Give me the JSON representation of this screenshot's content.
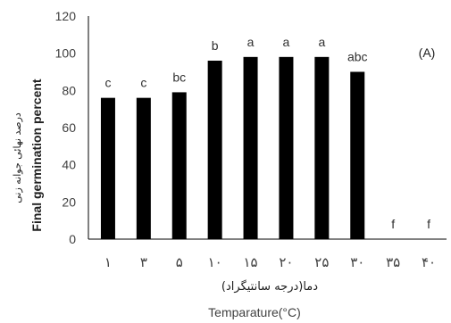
{
  "chart_data": {
    "type": "bar",
    "panel_label": "(A)",
    "categories": [
      "۱",
      "۳",
      "۵",
      "۱۰",
      "۱۵",
      "۲۰",
      "۲۵",
      "۳۰",
      "۳۵",
      "۴۰"
    ],
    "values": [
      76,
      76,
      79,
      96,
      98,
      98,
      98,
      90,
      0,
      0
    ],
    "significance": [
      "c",
      "c",
      "bc",
      "b",
      "a",
      "a",
      "a",
      "abc",
      "f",
      "f"
    ],
    "ylabel_fa": "درصد نهائی جوانه زنی",
    "ylabel_en": "Final germination percent",
    "xlabel_fa": "دما(درجه سانتیگراد)",
    "xlabel_en": "Temparature(°C)",
    "ylim": [
      0,
      120
    ],
    "yticks": [
      0,
      20,
      40,
      60,
      80,
      100,
      120
    ],
    "bar_color": "#000000",
    "grid": false
  }
}
